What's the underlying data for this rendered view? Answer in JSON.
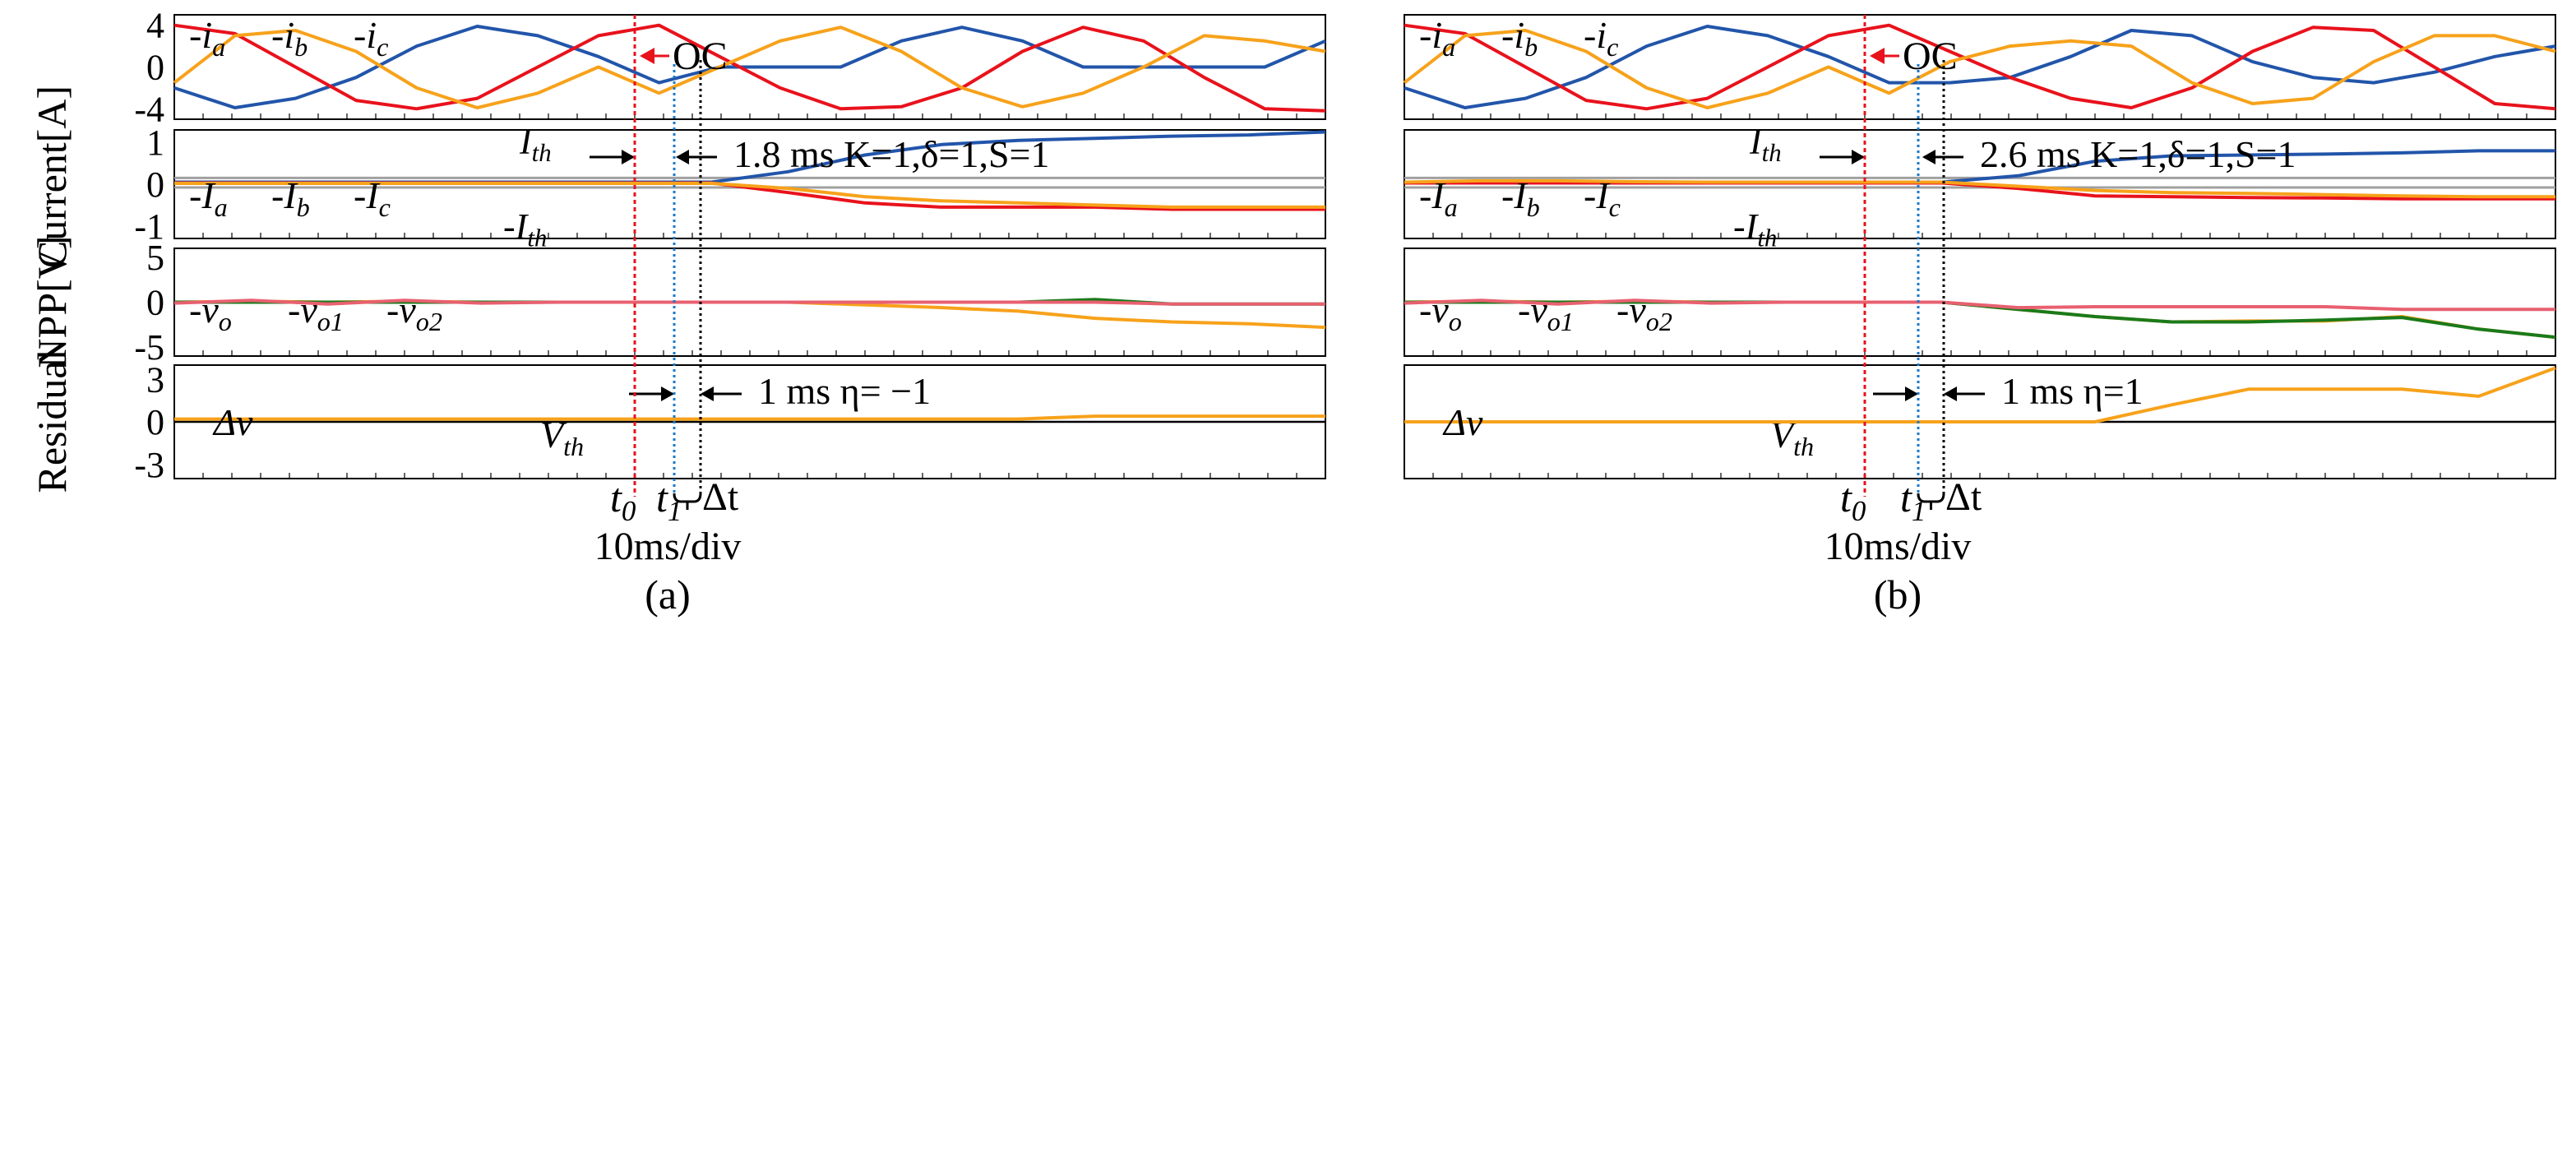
{
  "figure": {
    "ylabels": {
      "current": "Current[A]",
      "npp": "NPP[V]",
      "residual": "Residual"
    },
    "xlabel": "10ms/div",
    "colors": {
      "a": "#2255aa",
      "b": "#e8121c",
      "c": "#f7a21b",
      "vo1": "#1a7a1a",
      "vo2": "#e86070",
      "th": "#a0a0a0",
      "t0": "#e8121c",
      "t1": "#1a78c8"
    }
  },
  "chart_data": [
    {
      "panel": "a",
      "caption": "(a)",
      "type": "line",
      "time_unit": "10ms/div",
      "markers": {
        "t0": "t0",
        "t1": "t1",
        "dt": "Δt",
        "oc": "OC"
      },
      "current": {
        "ylim": [
          -5,
          5
        ],
        "yticks": [
          "4",
          "0",
          "-4"
        ],
        "legend": [
          "-i_a",
          "-i_b",
          "-i_c"
        ],
        "series": [
          {
            "name": "i_a",
            "color": "#2255aa",
            "values": [
              -2.0,
              -3.9,
              -3.0,
              -1.0,
              2.0,
              3.9,
              3.0,
              1.0,
              -1.5,
              0.0,
              0.0,
              0.0,
              2.5,
              3.8,
              2.5,
              0.0,
              0.0,
              0.0,
              0.0,
              2.5
            ]
          },
          {
            "name": "i_b",
            "color": "#e8121c",
            "values": [
              4.0,
              3.2,
              0.0,
              -3.2,
              -4.0,
              -3.0,
              0.0,
              3.0,
              4.0,
              1.0,
              -2.0,
              -4.0,
              -3.8,
              -2.0,
              1.5,
              3.8,
              2.5,
              -1.0,
              -4.0,
              -4.2
            ]
          },
          {
            "name": "i_c",
            "color": "#f7a21b",
            "values": [
              -1.5,
              3.0,
              3.5,
              1.5,
              -2.0,
              -3.9,
              -2.5,
              0.0,
              -2.5,
              0.0,
              2.5,
              3.8,
              1.5,
              -2.0,
              -3.8,
              -2.5,
              0.0,
              3.0,
              2.5,
              1.5
            ]
          }
        ]
      },
      "filtered": {
        "ylim": [
          -1.3,
          1.3
        ],
        "yticks": [
          "1",
          "0",
          "-1"
        ],
        "legend": [
          "-I_a",
          "-I_b",
          "-I_c"
        ],
        "thresholds": [
          0.15,
          -0.08
        ],
        "threshold_labels": [
          "I_th",
          "-I_th"
        ],
        "annotation": "1.8 ms  K=1,δ=1,S=1",
        "series": [
          {
            "name": "I_a",
            "color": "#2255aa",
            "values": [
              0.05,
              0.05,
              0.05,
              0.05,
              0.05,
              0.05,
              0.05,
              0.05,
              0.3,
              0.7,
              0.95,
              1.05,
              1.1,
              1.15,
              1.18,
              1.25
            ]
          },
          {
            "name": "I_b",
            "color": "#e8121c",
            "values": [
              0.03,
              0.03,
              0.03,
              0.03,
              0.03,
              0.03,
              0.03,
              0.03,
              -0.2,
              -0.45,
              -0.55,
              -0.55,
              -0.55,
              -0.6,
              -0.6,
              -0.6
            ]
          },
          {
            "name": "I_c",
            "color": "#f7a21b",
            "values": [
              0.02,
              0.02,
              0.02,
              0.02,
              0.02,
              0.02,
              0.02,
              0.02,
              -0.1,
              -0.3,
              -0.4,
              -0.45,
              -0.5,
              -0.55,
              -0.55,
              -0.55
            ]
          }
        ]
      },
      "npp": {
        "ylim": [
          -6,
          6
        ],
        "yticks": [
          "5",
          "0",
          "-5"
        ],
        "legend": [
          "-v_o",
          "-v_o1",
          "-v_o2"
        ],
        "series": [
          {
            "name": "v_o",
            "color": "#f7a21b",
            "values": [
              0.0,
              0.1,
              0.0,
              0.1,
              0.0,
              0.0,
              0.0,
              0.0,
              0.0,
              -0.3,
              -0.6,
              -1.0,
              -1.8,
              -2.2,
              -2.4,
              -2.8
            ]
          },
          {
            "name": "v_o1",
            "color": "#1a7a1a",
            "values": [
              0.0,
              0.0,
              0.0,
              0.0,
              0.0,
              0.0,
              0.0,
              0.0,
              0.0,
              0.0,
              0.0,
              0.0,
              0.3,
              -0.2,
              -0.2,
              -0.2
            ]
          },
          {
            "name": "v_o2",
            "color": "#e86070",
            "values": [
              -0.1,
              0.2,
              -0.2,
              0.2,
              -0.1,
              0.0,
              0.0,
              0.0,
              0.0,
              0.0,
              0.0,
              0.0,
              0.0,
              -0.2,
              -0.2,
              -0.2
            ]
          }
        ]
      },
      "residual": {
        "ylim": [
          -4,
          4
        ],
        "yticks": [
          "3",
          "0",
          "-3"
        ],
        "legend": [
          "Δv"
        ],
        "threshold": 0.0,
        "threshold_label": "V_th",
        "annotation": "1 ms  η= −1",
        "series": [
          {
            "name": "Δv",
            "color": "#f7a21b",
            "values": [
              0.2,
              0.2,
              0.2,
              0.2,
              0.2,
              0.2,
              0.2,
              0.2,
              0.2,
              0.2,
              0.2,
              0.2,
              0.4,
              0.4,
              0.4,
              0.4
            ]
          }
        ]
      }
    },
    {
      "panel": "b",
      "caption": "(b)",
      "type": "line",
      "time_unit": "10ms/div",
      "markers": {
        "t0": "t0",
        "t1": "t1",
        "dt": "Δt",
        "oc": "OC"
      },
      "current": {
        "ylim": [
          -5,
          5
        ],
        "yticks": [],
        "legend": [
          "-i_a",
          "-i_b",
          "-i_c"
        ],
        "series": [
          {
            "name": "i_a",
            "color": "#2255aa",
            "values": [
              -2.0,
              -3.9,
              -3.0,
              -1.0,
              2.0,
              3.9,
              3.0,
              1.0,
              -1.5,
              -1.5,
              -1.0,
              1.0,
              3.5,
              3.0,
              0.5,
              -1.0,
              -1.5,
              -0.5,
              1.0,
              2.0
            ]
          },
          {
            "name": "i_b",
            "color": "#e8121c",
            "values": [
              4.0,
              3.2,
              0.0,
              -3.2,
              -4.0,
              -3.0,
              0.0,
              3.0,
              4.0,
              1.5,
              -1.0,
              -3.0,
              -3.9,
              -2.0,
              1.5,
              3.8,
              3.5,
              0.0,
              -3.5,
              -4.0
            ]
          },
          {
            "name": "i_c",
            "color": "#f7a21b",
            "values": [
              -1.5,
              3.0,
              3.5,
              1.5,
              -2.0,
              -3.9,
              -2.5,
              0.0,
              -2.5,
              0.5,
              2.0,
              2.5,
              2.0,
              -1.5,
              -3.5,
              -3.0,
              0.5,
              3.0,
              3.0,
              1.5
            ]
          }
        ]
      },
      "filtered": {
        "ylim": [
          -1.3,
          1.3
        ],
        "yticks": [],
        "legend": [
          "-I_a",
          "-I_b",
          "-I_c"
        ],
        "thresholds": [
          0.15,
          -0.08
        ],
        "threshold_labels": [
          "I_th",
          "-I_th"
        ],
        "annotation": "2.6 ms  K=1,δ=1,S=1",
        "series": [
          {
            "name": "I_a",
            "color": "#2255aa",
            "values": [
              0.05,
              0.05,
              0.05,
              0.05,
              0.05,
              0.05,
              0.05,
              0.05,
              0.2,
              0.55,
              0.68,
              0.7,
              0.72,
              0.75,
              0.8,
              0.8
            ]
          },
          {
            "name": "I_b",
            "color": "#e8121c",
            "values": [
              0.03,
              0.03,
              0.03,
              0.03,
              0.03,
              0.03,
              0.03,
              0.03,
              -0.1,
              -0.28,
              -0.3,
              -0.32,
              -0.33,
              -0.35,
              -0.35,
              -0.35
            ]
          },
          {
            "name": "I_c",
            "color": "#f7a21b",
            "values": [
              0.05,
              0.08,
              0.08,
              0.06,
              0.05,
              0.05,
              0.05,
              0.05,
              -0.05,
              -0.15,
              -0.2,
              -0.22,
              -0.25,
              -0.28,
              -0.3,
              -0.3
            ]
          }
        ]
      },
      "npp": {
        "ylim": [
          -6,
          6
        ],
        "yticks": [],
        "legend": [
          "-v_o",
          "-v_o1",
          "-v_o2"
        ],
        "series": [
          {
            "name": "v_o",
            "color": "#f7a21b",
            "values": [
              0.0,
              0.1,
              0.0,
              0.1,
              0.0,
              0.0,
              0.0,
              0.0,
              -0.8,
              -1.6,
              -2.2,
              -2.1,
              -2.1,
              -1.6,
              -3.0,
              -3.9
            ]
          },
          {
            "name": "v_o1",
            "color": "#1a7a1a",
            "values": [
              0.0,
              0.0,
              0.0,
              0.0,
              0.0,
              0.0,
              0.0,
              0.0,
              -0.8,
              -1.6,
              -2.2,
              -2.2,
              -2.0,
              -1.7,
              -3.0,
              -3.9
            ]
          },
          {
            "name": "v_o2",
            "color": "#e86070",
            "values": [
              -0.1,
              0.2,
              -0.2,
              0.2,
              -0.1,
              0.0,
              0.0,
              0.0,
              -0.6,
              -0.5,
              -0.5,
              -0.5,
              -0.5,
              -0.8,
              -0.8,
              -0.8
            ]
          }
        ]
      },
      "residual": {
        "ylim": [
          -4,
          4
        ],
        "yticks": [],
        "legend": [
          "Δv"
        ],
        "threshold": 0.0,
        "threshold_label": "V_th",
        "annotation": "1 ms  η=1",
        "series": [
          {
            "name": "Δv",
            "color": "#f7a21b",
            "values": [
              0.0,
              0.0,
              0.0,
              0.0,
              0.0,
              0.0,
              0.0,
              0.0,
              0.0,
              0.0,
              1.2,
              2.3,
              2.3,
              2.3,
              1.8,
              3.8
            ]
          }
        ]
      }
    }
  ]
}
